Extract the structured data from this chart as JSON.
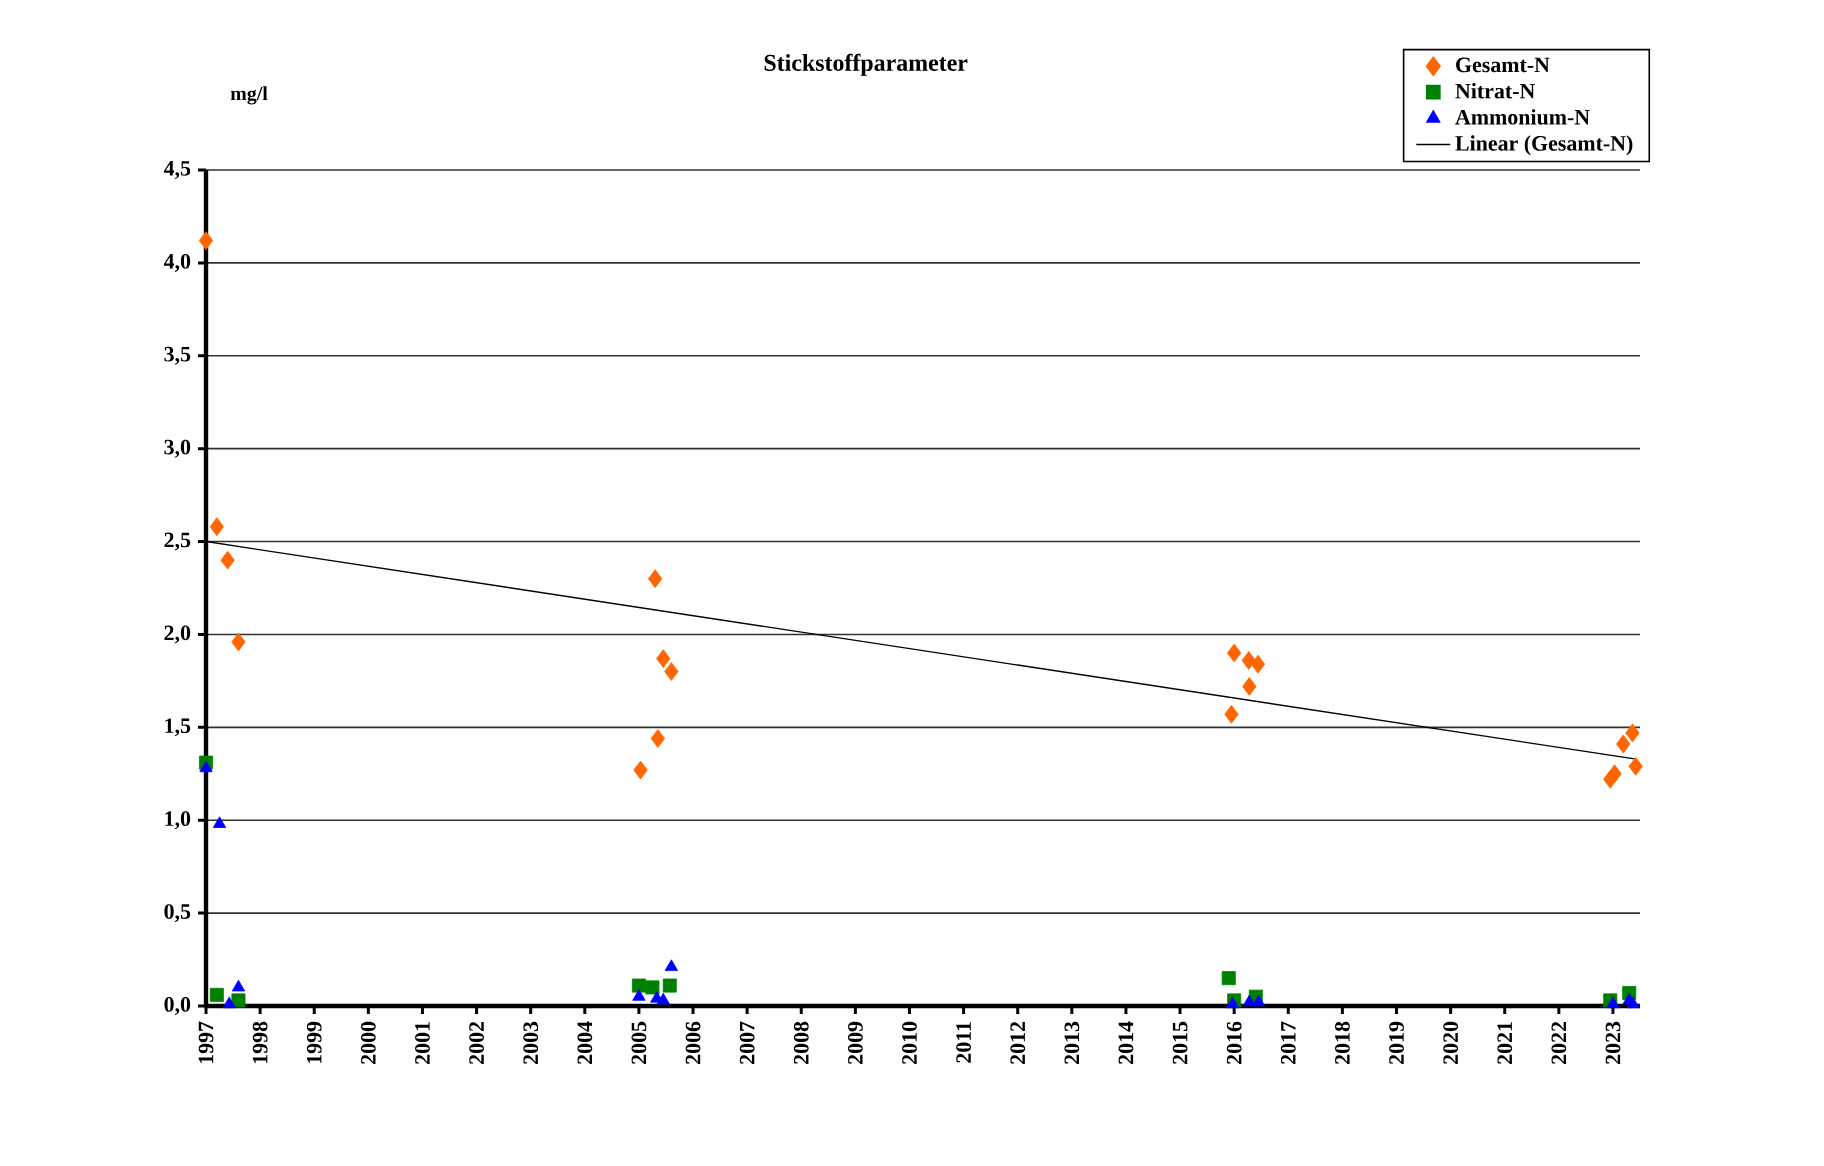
{
  "chart_data": {
    "type": "scatter",
    "title": "Stickstoffparameter",
    "ylabel": "mg/l",
    "xlim": [
      1997,
      2023.5
    ],
    "xticks": [
      1997,
      1998,
      1999,
      2000,
      2001,
      2002,
      2003,
      2004,
      2005,
      2006,
      2007,
      2008,
      2009,
      2010,
      2011,
      2012,
      2013,
      2014,
      2015,
      2016,
      2017,
      2018,
      2019,
      2020,
      2021,
      2022,
      2023
    ],
    "ylim": [
      0,
      4.5
    ],
    "yticks": [
      {
        "value": 0,
        "label": "0,0"
      },
      {
        "value": 0.5,
        "label": "0,5"
      },
      {
        "value": 1,
        "label": "1,0"
      },
      {
        "value": 1.5,
        "label": "1,5"
      },
      {
        "value": 2,
        "label": "2,0"
      },
      {
        "value": 2.5,
        "label": "2,5"
      },
      {
        "value": 3,
        "label": "3,0"
      },
      {
        "value": 3.5,
        "label": "3,5"
      },
      {
        "value": 4,
        "label": "4,0"
      },
      {
        "value": 4.5,
        "label": "4,5"
      }
    ],
    "grid": "y",
    "legend": "top right",
    "series": [
      {
        "name": "Gesamt-N",
        "color": "#ff6600",
        "marker": "diamond",
        "x": [
          1997.0,
          1997.2,
          1997.4,
          1997.6,
          2005.03,
          2005.3,
          2005.35,
          2005.45,
          2005.6,
          2015.95,
          2016.0,
          2016.27,
          2016.44,
          2016.28,
          2022.95,
          2023.03,
          2023.19,
          2023.36,
          2023.42
        ],
        "values": [
          4.12,
          2.58,
          2.4,
          1.96,
          1.27,
          2.3,
          1.44,
          1.87,
          1.8,
          1.57,
          1.9,
          1.86,
          1.84,
          1.72,
          1.22,
          1.25,
          1.41,
          1.47,
          1.29
        ]
      },
      {
        "name": "Nitrat-N",
        "color": "#008000",
        "marker": "square",
        "x": [
          1997.0,
          1997.2,
          1997.6,
          2005.0,
          2005.25,
          2005.57,
          2015.9,
          2016.0,
          2016.4,
          2022.95,
          2023.3
        ],
        "values": [
          1.31,
          0.06,
          0.03,
          0.11,
          0.1,
          0.11,
          0.15,
          0.03,
          0.05,
          0.03,
          0.07
        ]
      },
      {
        "name": "Ammonium-N",
        "color": "#0000ff",
        "marker": "triangle",
        "x": [
          1997.0,
          1997.25,
          1997.43,
          1997.6,
          2005.0,
          2005.33,
          2005.45,
          2005.6,
          2015.97,
          2016.28,
          2016.45,
          2023.0,
          2023.3,
          2023.37
        ],
        "values": [
          1.28,
          0.98,
          0.01,
          0.1,
          0.05,
          0.04,
          0.03,
          0.21,
          0.01,
          0.02,
          0.02,
          0.01,
          0.03,
          0.01
        ]
      },
      {
        "name": "Linear (Gesamt-N)",
        "type": "line",
        "color": "#000000",
        "marker": "none",
        "line_style": "solid",
        "x": [
          1997,
          2023.4
        ],
        "values": [
          2.5,
          1.33
        ]
      }
    ]
  }
}
